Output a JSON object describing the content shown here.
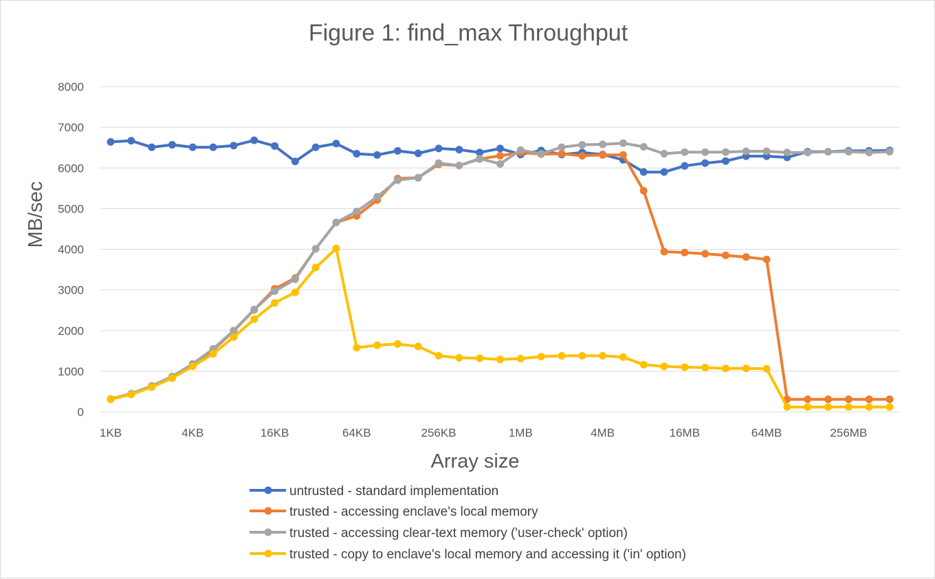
{
  "chart_data": {
    "type": "line",
    "title": "Figure 1: find_max Throughput",
    "xlabel": "Array size",
    "ylabel": "MB/sec",
    "ylim": [
      0,
      8000
    ],
    "yticks": [
      0,
      1000,
      2000,
      3000,
      4000,
      5000,
      6000,
      7000,
      8000
    ],
    "grid": true,
    "legend_position": "bottom",
    "x_tick_labels": [
      {
        "index": 0,
        "label": "1KB"
      },
      {
        "index": 4,
        "label": "4KB"
      },
      {
        "index": 8,
        "label": "16KB"
      },
      {
        "index": 12,
        "label": "64KB"
      },
      {
        "index": 16,
        "label": "256KB"
      },
      {
        "index": 20,
        "label": "1MB"
      },
      {
        "index": 24,
        "label": "4MB"
      },
      {
        "index": 28,
        "label": "16MB"
      },
      {
        "index": 32,
        "label": "64MB"
      },
      {
        "index": 36,
        "label": "256MB"
      }
    ],
    "series": [
      {
        "name": "untrusted - standard implementation",
        "color": "#4472c4",
        "values": [
          6640,
          6670,
          6510,
          6570,
          6510,
          6510,
          6550,
          6680,
          6540,
          6160,
          6510,
          6600,
          6350,
          6320,
          6420,
          6360,
          6480,
          6450,
          6380,
          6480,
          6330,
          6430,
          6330,
          6380,
          6330,
          6200,
          5900,
          5900,
          6050,
          6120,
          6170,
          6290,
          6290,
          6260,
          6400,
          6400,
          6420,
          6420,
          6430
        ]
      },
      {
        "name": "trusted - accessing enclave's local memory",
        "color": "#ed7d31",
        "values": [
          310,
          440,
          620,
          850,
          1160,
          1520,
          1990,
          2510,
          3030,
          3290,
          4010,
          4660,
          4820,
          5210,
          5740,
          5760,
          6090,
          6060,
          6220,
          6300,
          6380,
          6340,
          6350,
          6300,
          6320,
          6320,
          5440,
          3940,
          3920,
          3890,
          3850,
          3810,
          3750,
          310,
          310,
          310,
          310,
          310,
          310
        ]
      },
      {
        "name": "trusted - accessing clear-text memory ('user-check' option)",
        "color": "#a5a5a5",
        "values": [
          320,
          450,
          640,
          870,
          1180,
          1550,
          2000,
          2520,
          2970,
          3260,
          4010,
          4660,
          4930,
          5290,
          5700,
          5760,
          6120,
          6060,
          6230,
          6100,
          6440,
          6350,
          6510,
          6570,
          6580,
          6610,
          6520,
          6350,
          6390,
          6390,
          6390,
          6410,
          6410,
          6380,
          6380,
          6400,
          6400,
          6380,
          6400
        ]
      },
      {
        "name": "trusted - copy to enclave's local memory and accessing it ('in' option)",
        "color": "#ffc000",
        "values": [
          310,
          430,
          610,
          830,
          1120,
          1430,
          1840,
          2280,
          2680,
          2940,
          3550,
          4020,
          1580,
          1640,
          1670,
          1610,
          1380,
          1330,
          1320,
          1290,
          1310,
          1360,
          1380,
          1380,
          1380,
          1350,
          1160,
          1120,
          1100,
          1090,
          1070,
          1070,
          1060,
          120,
          120,
          120,
          120,
          120,
          120
        ]
      }
    ]
  }
}
